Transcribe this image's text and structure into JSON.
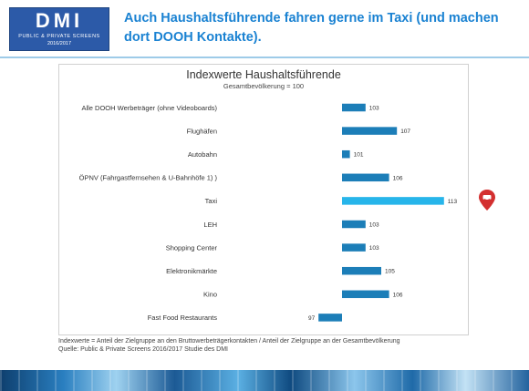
{
  "header": {
    "logo": {
      "mark": "DMI",
      "subtitle": "PUBLIC & PRIVATE SCREENS",
      "year": "2016/2017"
    },
    "headline": "Auch Haushaltsführende fahren gerne im Taxi (und machen dort DOOH Kontakte)."
  },
  "chart_data": {
    "type": "bar",
    "orientation": "horizontal",
    "title": "Indexwerte Haushaltsführende",
    "subtitle": "Gesamtbevölkerung = 100",
    "baseline": 100,
    "categories": [
      "Alle DOOH Werbeträger (ohne Videoboards)",
      "Flughäfen",
      "Autobahn",
      "ÖPNV (Fahrgastfernsehen & U-Bahnhöfe 1) )",
      "Taxi",
      "LEH",
      "Shopping Center",
      "Elektronikmärkte",
      "Kino",
      "Fast Food Restaurants"
    ],
    "values": [
      103,
      107,
      101,
      106,
      113,
      103,
      103,
      105,
      106,
      97
    ],
    "highlight": "Taxi",
    "colors": {
      "bar": "#1c7eb8",
      "highlight": "#27b5ea"
    },
    "grid": false,
    "legend": "none"
  },
  "footnote": {
    "line1": "Indexwerte = Anteil der Zielgruppe an den Bruttowerbeträgerkontakten / Anteil der Zielgruppe an der Gesamtbevölkerung",
    "line2": "Quelle: Public & Private Screens 2016/2017 Studie des DMI"
  },
  "decor": {
    "pin_icon": "map-pin-icon",
    "pin_color": "#d32f2f"
  }
}
